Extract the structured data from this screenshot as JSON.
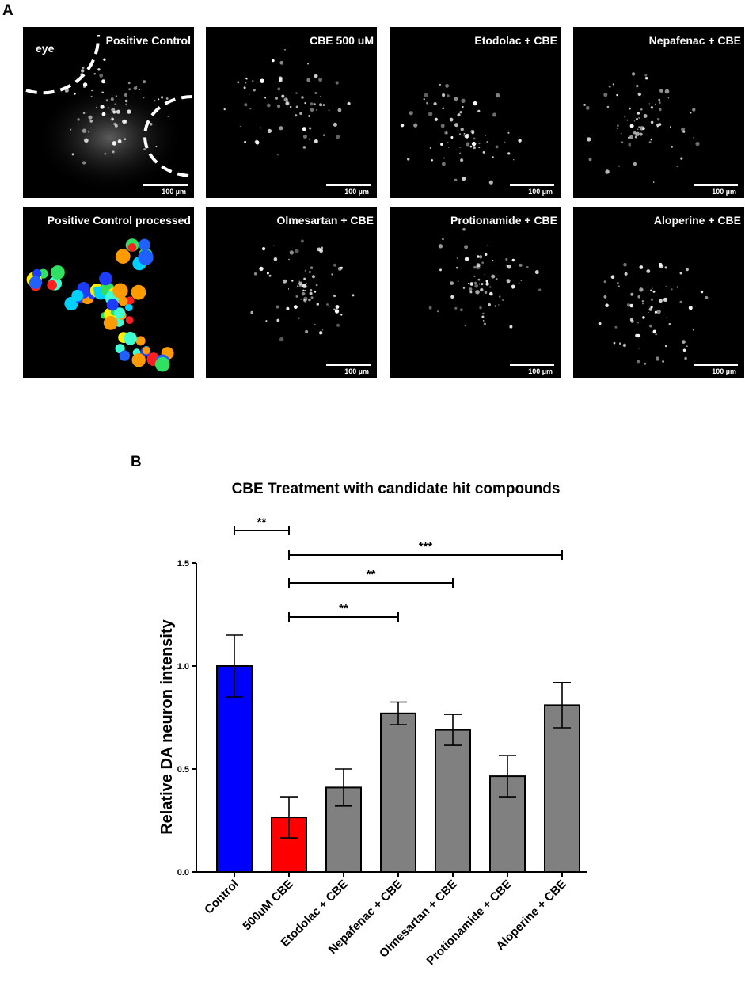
{
  "panel_a": {
    "letter": "A",
    "eye_label": "eye",
    "scale_label": "100 µm",
    "images": [
      {
        "title": "Positive Control"
      },
      {
        "title": "CBE 500 uM"
      },
      {
        "title": "Etodolac + CBE"
      },
      {
        "title": "Nepafenac + CBE"
      },
      {
        "title": "Positive Control processed"
      },
      {
        "title": "Olmesartan + CBE"
      },
      {
        "title": "Protionamide + CBE"
      },
      {
        "title": "Aloperine + CBE"
      }
    ]
  },
  "panel_b": {
    "letter": "B"
  },
  "chart_data": {
    "type": "bar",
    "title": "CBE Treatment with candidate hit compounds",
    "xlabel": "",
    "ylabel": "Relative DA neuron intensity",
    "ylim": [
      0,
      1.5
    ],
    "yticks": [
      "0.0",
      "0.5",
      "1.0",
      "1.5"
    ],
    "categories": [
      "Control",
      "500uM CBE",
      "Etodolac + CBE",
      "Nepafenac + CBE",
      "Olmesartan + CBE",
      "Protionamide + CBE",
      "Aloperine + CBE"
    ],
    "values": [
      1.0,
      0.265,
      0.41,
      0.77,
      0.69,
      0.465,
      0.81
    ],
    "errors": [
      0.15,
      0.1,
      0.09,
      0.055,
      0.075,
      0.1,
      0.11
    ],
    "colors": [
      "#0000ff",
      "#ff0000",
      "#808080",
      "#808080",
      "#808080",
      "#808080",
      "#808080"
    ],
    "significance": [
      {
        "from": 0,
        "to": 1,
        "label": "**"
      },
      {
        "from": 1,
        "to": 6,
        "label": "***"
      },
      {
        "from": 1,
        "to": 4,
        "label": "**"
      },
      {
        "from": 1,
        "to": 3,
        "label": "**"
      }
    ]
  }
}
